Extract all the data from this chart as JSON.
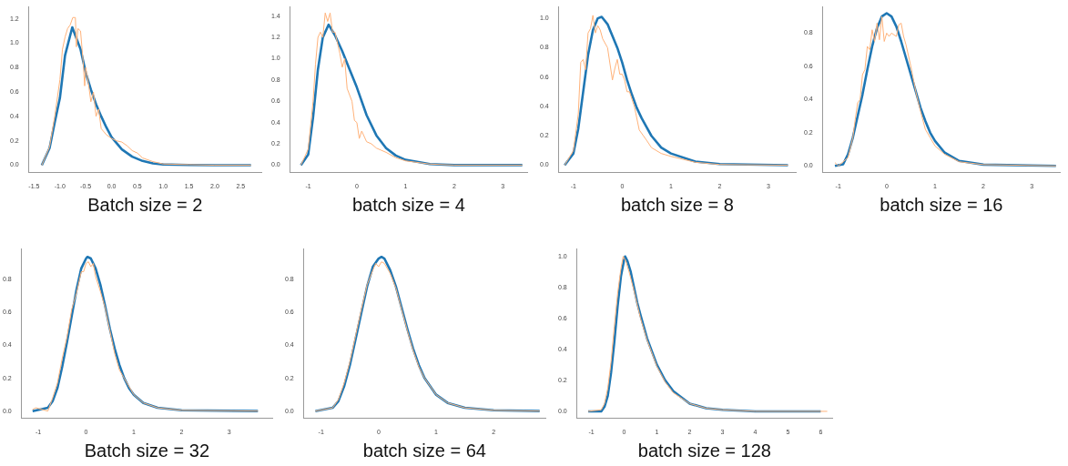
{
  "chart_data": [
    {
      "type": "line",
      "xlabel": "Batch size = 2",
      "xlim": [
        -1.6,
        2.9
      ],
      "ylim": [
        -0.06,
        1.3
      ],
      "xticks": [
        {
          "value": -1.5,
          "label": "-1.5"
        },
        {
          "value": -1,
          "label": "-1.0"
        },
        {
          "value": -0.5,
          "label": "-0.5"
        },
        {
          "value": 0,
          "label": "0.0"
        },
        {
          "value": 0.5,
          "label": "0.5"
        },
        {
          "value": 1,
          "label": "1.0"
        },
        {
          "value": 1.5,
          "label": "1.5"
        },
        {
          "value": 2,
          "label": "2.0"
        },
        {
          "value": 2.5,
          "label": "2.5"
        }
      ],
      "yticks": [
        {
          "value": 0,
          "label": "0.0"
        },
        {
          "value": 0.2,
          "label": "0.2"
        },
        {
          "value": 0.4,
          "label": "0.4"
        },
        {
          "value": 0.6,
          "label": "0.6"
        },
        {
          "value": 0.8,
          "label": "0.8"
        },
        {
          "value": 1,
          "label": "1.0"
        },
        {
          "value": 1.2,
          "label": "1.2"
        }
      ],
      "series": [
        {
          "color": "#1f77b4",
          "x": [
            -1.35,
            -1.2,
            -1.1,
            -1.0,
            -0.9,
            -0.76,
            -0.6,
            -0.5,
            -0.4,
            -0.3,
            -0.2,
            -0.1,
            0,
            0.2,
            0.4,
            0.6,
            0.8,
            1.0,
            1.5,
            2.0,
            2.7
          ],
          "values": [
            0,
            0.14,
            0.35,
            0.55,
            0.9,
            1.13,
            0.95,
            0.76,
            0.62,
            0.5,
            0.4,
            0.31,
            0.23,
            0.13,
            0.07,
            0.035,
            0.015,
            0.007,
            0.002,
            0,
            0
          ]
        },
        {
          "color": "#ffb27a",
          "x": [
            -1.35,
            -1.2,
            -1.1,
            -1.0,
            -0.95,
            -0.9,
            -0.85,
            -0.8,
            -0.75,
            -0.7,
            -0.68,
            -0.65,
            -0.6,
            -0.55,
            -0.52,
            -0.5,
            -0.45,
            -0.4,
            -0.35,
            -0.3,
            -0.25,
            -0.2,
            -0.1,
            0,
            0.1,
            0.2,
            0.3,
            0.4,
            0.5,
            0.6,
            0.8,
            1.0,
            1.5,
            2.0,
            2.7
          ],
          "values": [
            0,
            0.15,
            0.4,
            0.7,
            0.95,
            1.05,
            1.12,
            1.15,
            1.21,
            1.21,
            0.97,
            1.12,
            1.1,
            0.85,
            0.65,
            0.8,
            0.68,
            0.52,
            0.6,
            0.4,
            0.46,
            0.3,
            0.25,
            0.22,
            0.2,
            0.19,
            0.16,
            0.12,
            0.1,
            0.06,
            0.03,
            0.01,
            0.005,
            0,
            0
          ]
        }
      ]
    },
    {
      "type": "line",
      "xlabel": "batch size = 4",
      "xlim": [
        -1.37,
        3.5
      ],
      "ylim": [
        -0.07,
        1.49
      ],
      "xticks": [
        -1,
        0,
        1,
        2,
        3
      ],
      "yticks": [
        {
          "value": 0,
          "label": "0.0"
        },
        {
          "value": 0.2,
          "label": "0.2"
        },
        {
          "value": 0.4,
          "label": "0.4"
        },
        {
          "value": 0.6,
          "label": "0.6"
        },
        {
          "value": 0.8,
          "label": "0.8"
        },
        {
          "value": 1,
          "label": "1.0"
        },
        {
          "value": 1.2,
          "label": "1.2"
        },
        {
          "value": 1.4,
          "label": "1.4"
        }
      ],
      "series": [
        {
          "color": "#1f77b4",
          "x": [
            -1.15,
            -1.0,
            -0.9,
            -0.8,
            -0.7,
            -0.58,
            -0.45,
            -0.3,
            -0.15,
            0,
            0.2,
            0.4,
            0.6,
            0.8,
            1.0,
            1.5,
            2.0,
            3.4
          ],
          "values": [
            0,
            0.1,
            0.45,
            0.9,
            1.2,
            1.32,
            1.22,
            1.07,
            0.9,
            0.73,
            0.47,
            0.28,
            0.16,
            0.09,
            0.05,
            0.01,
            0,
            0
          ]
        },
        {
          "color": "#ffb27a",
          "x": [
            -1.15,
            -1.0,
            -0.9,
            -0.85,
            -0.8,
            -0.75,
            -0.7,
            -0.65,
            -0.6,
            -0.55,
            -0.5,
            -0.45,
            -0.35,
            -0.3,
            -0.25,
            -0.2,
            -0.1,
            -0.05,
            0,
            0.05,
            0.1,
            0.2,
            0.3,
            0.4,
            0.5,
            0.6,
            0.8,
            1.0,
            1.5,
            2.0,
            3.4
          ],
          "values": [
            0,
            0.15,
            0.6,
            0.95,
            1.2,
            1.25,
            1.2,
            1.43,
            1.35,
            1.43,
            1.25,
            1.25,
            1.05,
            0.92,
            1.0,
            0.72,
            0.6,
            0.42,
            0.4,
            0.25,
            0.32,
            0.22,
            0.2,
            0.16,
            0.14,
            0.12,
            0.07,
            0.04,
            0.01,
            0,
            0
          ]
        }
      ]
    },
    {
      "type": "line",
      "xlabel": "batch size = 8",
      "xlim": [
        -1.3,
        3.56
      ],
      "ylim": [
        -0.05,
        1.08
      ],
      "xticks": [
        -1,
        0,
        1,
        2,
        3
      ],
      "yticks": [
        {
          "value": 0,
          "label": "0.0"
        },
        {
          "value": 0.2,
          "label": "0.2"
        },
        {
          "value": 0.4,
          "label": "0.4"
        },
        {
          "value": 0.6,
          "label": "0.6"
        },
        {
          "value": 0.8,
          "label": "0.8"
        },
        {
          "value": 1,
          "label": "1.0"
        }
      ],
      "series": [
        {
          "color": "#1f77b4",
          "x": [
            -1.18,
            -1.0,
            -0.9,
            -0.8,
            -0.7,
            -0.6,
            -0.5,
            -0.42,
            -0.3,
            -0.2,
            -0.1,
            0,
            0.1,
            0.2,
            0.3,
            0.4,
            0.5,
            0.6,
            0.8,
            1.0,
            1.5,
            2.0,
            3.4
          ],
          "values": [
            0,
            0.08,
            0.25,
            0.5,
            0.75,
            0.92,
            1.0,
            1.01,
            0.96,
            0.88,
            0.8,
            0.7,
            0.58,
            0.48,
            0.39,
            0.32,
            0.26,
            0.2,
            0.12,
            0.08,
            0.025,
            0.008,
            0
          ]
        },
        {
          "color": "#ffb27a",
          "x": [
            -1.18,
            -1.0,
            -0.9,
            -0.85,
            -0.8,
            -0.75,
            -0.7,
            -0.65,
            -0.6,
            -0.55,
            -0.5,
            -0.45,
            -0.4,
            -0.3,
            -0.2,
            -0.15,
            -0.1,
            -0.05,
            0,
            0.05,
            0.1,
            0.15,
            0.25,
            0.35,
            0.5,
            0.6,
            0.8,
            1.0,
            1.5,
            2.0,
            3.4
          ],
          "values": [
            0,
            0.1,
            0.35,
            0.7,
            0.72,
            0.65,
            0.9,
            0.93,
            1.02,
            0.9,
            0.95,
            0.92,
            0.86,
            0.8,
            0.58,
            0.66,
            0.72,
            0.62,
            0.62,
            0.58,
            0.5,
            0.5,
            0.4,
            0.24,
            0.17,
            0.12,
            0.08,
            0.06,
            0.02,
            0.005,
            0
          ]
        }
      ]
    },
    {
      "type": "line",
      "xlabel": "batch size = 16",
      "xlim": [
        -1.32,
        3.58
      ],
      "ylim": [
        -0.04,
        0.96
      ],
      "xticks": [
        -1,
        0,
        1,
        2,
        3
      ],
      "yticks": [
        {
          "value": 0,
          "label": "0.0"
        },
        {
          "value": 0.2,
          "label": "0.2"
        },
        {
          "value": 0.4,
          "label": "0.4"
        },
        {
          "value": 0.6,
          "label": "0.6"
        },
        {
          "value": 0.8,
          "label": "0.8"
        }
      ],
      "series": [
        {
          "color": "#1f77b4",
          "x": [
            -1.07,
            -0.9,
            -0.8,
            -0.7,
            -0.6,
            -0.5,
            -0.4,
            -0.3,
            -0.2,
            -0.1,
            0,
            0.1,
            0.2,
            0.3,
            0.4,
            0.5,
            0.6,
            0.7,
            0.8,
            0.9,
            1.0,
            1.2,
            1.5,
            2.0,
            3.5
          ],
          "values": [
            0,
            0.01,
            0.07,
            0.17,
            0.3,
            0.43,
            0.58,
            0.72,
            0.83,
            0.9,
            0.92,
            0.9,
            0.84,
            0.75,
            0.65,
            0.55,
            0.45,
            0.35,
            0.27,
            0.2,
            0.15,
            0.08,
            0.03,
            0.008,
            0
          ]
        },
        {
          "color": "#ffb27a",
          "x": [
            -1.07,
            -1.0,
            -0.8,
            -0.7,
            -0.65,
            -0.6,
            -0.55,
            -0.5,
            -0.45,
            -0.4,
            -0.35,
            -0.3,
            -0.25,
            -0.2,
            -0.15,
            -0.1,
            -0.05,
            0,
            0.05,
            0.1,
            0.2,
            0.25,
            0.3,
            0.35,
            0.4,
            0.5,
            0.6,
            0.7,
            0.8,
            0.9,
            1.0,
            1.2,
            1.5,
            2.0,
            3.5
          ],
          "values": [
            0.02,
            0,
            0.05,
            0.17,
            0.28,
            0.38,
            0.4,
            0.55,
            0.58,
            0.72,
            0.7,
            0.82,
            0.75,
            0.86,
            0.76,
            0.9,
            0.75,
            0.8,
            0.78,
            0.8,
            0.78,
            0.85,
            0.86,
            0.78,
            0.73,
            0.6,
            0.45,
            0.33,
            0.22,
            0.17,
            0.12,
            0.07,
            0.025,
            0.008,
            0
          ]
        }
      ]
    },
    {
      "type": "line",
      "xlabel": "Batch size = 32",
      "xlim": [
        -1.35,
        3.9
      ],
      "ylim": [
        -0.044,
        0.99
      ],
      "xticks": [
        -1,
        0,
        1,
        2,
        3
      ],
      "yticks": [
        {
          "value": 0,
          "label": "0.0"
        },
        {
          "value": 0.2,
          "label": "0.2"
        },
        {
          "value": 0.4,
          "label": "0.4"
        },
        {
          "value": 0.6,
          "label": "0.6"
        },
        {
          "value": 0.8,
          "label": "0.8"
        }
      ],
      "series": [
        {
          "color": "#1f77b4",
          "x": [
            -1.12,
            -0.8,
            -0.7,
            -0.6,
            -0.5,
            -0.4,
            -0.3,
            -0.2,
            -0.1,
            0,
            0.03,
            0.1,
            0.2,
            0.3,
            0.4,
            0.5,
            0.6,
            0.7,
            0.8,
            0.9,
            1.0,
            1.2,
            1.5,
            2.0,
            3.6
          ],
          "values": [
            0,
            0.02,
            0.06,
            0.14,
            0.27,
            0.42,
            0.58,
            0.74,
            0.87,
            0.93,
            0.94,
            0.93,
            0.87,
            0.77,
            0.64,
            0.5,
            0.38,
            0.28,
            0.2,
            0.14,
            0.1,
            0.05,
            0.02,
            0.005,
            0
          ]
        },
        {
          "color": "#ffb27a",
          "x": [
            -1.12,
            -1.05,
            -0.8,
            -0.7,
            -0.6,
            -0.5,
            -0.4,
            -0.3,
            -0.2,
            -0.1,
            -0.05,
            0,
            0.05,
            0.1,
            0.15,
            0.2,
            0.3,
            0.4,
            0.5,
            0.6,
            0.7,
            0.8,
            1.0,
            1.2,
            1.5,
            2.0,
            3.6
          ],
          "values": [
            0.01,
            0.02,
            0,
            0.08,
            0.17,
            0.32,
            0.45,
            0.62,
            0.72,
            0.85,
            0.85,
            0.9,
            0.91,
            0.88,
            0.9,
            0.82,
            0.73,
            0.63,
            0.49,
            0.35,
            0.25,
            0.2,
            0.1,
            0.05,
            0.02,
            0.005,
            0
          ]
        }
      ]
    },
    {
      "type": "line",
      "xlabel": "batch size = 64",
      "xlim": [
        -1.3,
        2.9
      ],
      "ylim": [
        -0.044,
        0.99
      ],
      "xticks": [
        -1,
        0,
        1,
        2
      ],
      "yticks": [
        {
          "value": 0,
          "label": "0.0"
        },
        {
          "value": 0.2,
          "label": "0.2"
        },
        {
          "value": 0.4,
          "label": "0.4"
        },
        {
          "value": 0.6,
          "label": "0.6"
        },
        {
          "value": 0.8,
          "label": "0.8"
        }
      ],
      "series": [
        {
          "color": "#1f77b4",
          "x": [
            -1.1,
            -0.8,
            -0.7,
            -0.6,
            -0.5,
            -0.4,
            -0.3,
            -0.2,
            -0.1,
            0,
            0.05,
            0.1,
            0.2,
            0.3,
            0.4,
            0.5,
            0.6,
            0.7,
            0.8,
            1.0,
            1.2,
            1.5,
            2.0,
            2.8
          ],
          "values": [
            0,
            0.02,
            0.06,
            0.15,
            0.28,
            0.44,
            0.6,
            0.76,
            0.88,
            0.93,
            0.94,
            0.93,
            0.86,
            0.76,
            0.63,
            0.5,
            0.38,
            0.28,
            0.2,
            0.1,
            0.05,
            0.02,
            0.005,
            0
          ]
        },
        {
          "color": "#ffb27a",
          "x": [
            -1.1,
            -0.8,
            -0.7,
            -0.6,
            -0.5,
            -0.4,
            -0.3,
            -0.2,
            -0.1,
            -0.05,
            0,
            0.05,
            0.1,
            0.2,
            0.3,
            0.4,
            0.5,
            0.6,
            0.7,
            0.8,
            1.0,
            1.2,
            1.5,
            2.0,
            2.8
          ],
          "values": [
            0,
            0.02,
            0.07,
            0.17,
            0.3,
            0.46,
            0.62,
            0.77,
            0.86,
            0.9,
            0.88,
            0.91,
            0.9,
            0.84,
            0.75,
            0.62,
            0.49,
            0.37,
            0.27,
            0.2,
            0.1,
            0.05,
            0.02,
            0.005,
            0
          ]
        }
      ]
    },
    {
      "type": "line",
      "xlabel": "batch size = 128",
      "xlim": [
        -1.44,
        6.35
      ],
      "ylim": [
        -0.045,
        1.05
      ],
      "xticks": [
        -1,
        0,
        1,
        2,
        3,
        4,
        5,
        6
      ],
      "yticks": [
        {
          "value": 0,
          "label": "0.0"
        },
        {
          "value": 0.2,
          "label": "0.2"
        },
        {
          "value": 0.4,
          "label": "0.4"
        },
        {
          "value": 0.6,
          "label": "0.6"
        },
        {
          "value": 0.8,
          "label": "0.8"
        },
        {
          "value": 1,
          "label": "1.0"
        }
      ],
      "series": [
        {
          "color": "#1f77b4",
          "x": [
            -1.1,
            -0.7,
            -0.6,
            -0.5,
            -0.4,
            -0.3,
            -0.2,
            -0.1,
            0,
            0.03,
            0.1,
            0.2,
            0.3,
            0.4,
            0.5,
            0.7,
            1.0,
            1.25,
            1.5,
            2.0,
            2.5,
            3.0,
            4.0,
            6.0
          ],
          "values": [
            0,
            0,
            0.03,
            0.1,
            0.25,
            0.45,
            0.68,
            0.87,
            0.98,
            1.0,
            0.97,
            0.9,
            0.8,
            0.7,
            0.62,
            0.47,
            0.3,
            0.2,
            0.13,
            0.05,
            0.02,
            0.01,
            0,
            0
          ]
        },
        {
          "color": "#ffb27a",
          "x": [
            -1.1,
            -0.7,
            -0.6,
            -0.5,
            -0.4,
            -0.3,
            -0.2,
            -0.1,
            -0.03,
            0.05,
            0.15,
            0.3,
            0.5,
            0.7,
            1.0,
            1.25,
            1.5,
            2.0,
            2.5,
            3.0,
            4.0,
            6.2
          ],
          "values": [
            0,
            0.01,
            0.05,
            0.15,
            0.32,
            0.55,
            0.76,
            0.92,
            1.0,
            0.97,
            0.9,
            0.78,
            0.6,
            0.46,
            0.29,
            0.19,
            0.12,
            0.05,
            0.02,
            0.01,
            0,
            0
          ]
        }
      ]
    }
  ]
}
